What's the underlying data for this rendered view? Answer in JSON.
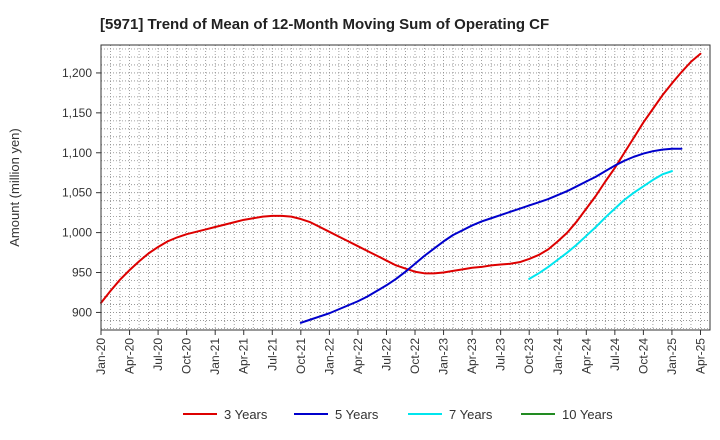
{
  "chart_data": {
    "type": "line",
    "title": "[5971]  Trend of Mean of 12-Month Moving Sum of Operating CF",
    "xlabel": "",
    "ylabel": "Amount (million yen)",
    "ylim": [
      878,
      1235
    ],
    "yticks": [
      900,
      950,
      1000,
      1050,
      1100,
      1150,
      1200
    ],
    "ytick_labels": [
      "900",
      "950",
      "1,000",
      "1,050",
      "1,100",
      "1,150",
      "1,200"
    ],
    "xtick_labels": [
      "Jan-20",
      "Apr-20",
      "Jul-20",
      "Oct-20",
      "Jan-21",
      "Apr-21",
      "Jul-21",
      "Oct-21",
      "Jan-22",
      "Apr-22",
      "Jul-22",
      "Oct-22",
      "Jan-23",
      "Apr-23",
      "Jul-23",
      "Oct-23",
      "Jan-24",
      "Apr-24",
      "Jul-24",
      "Oct-24",
      "Jan-25",
      "Apr-25"
    ],
    "x_start_month": "Jan-20",
    "grid": true,
    "legend_position": "bottom",
    "series": [
      {
        "name": "3 Years",
        "color": "#dd0000",
        "start_index": 0,
        "values": [
          912,
          927,
          941,
          953,
          964,
          974,
          982,
          989,
          994,
          998,
          1001,
          1004,
          1007,
          1010,
          1013,
          1016,
          1018,
          1020,
          1021,
          1021,
          1020,
          1017,
          1013,
          1007,
          1001,
          995,
          989,
          983,
          977,
          971,
          965,
          959,
          955,
          951,
          949,
          949,
          950,
          952,
          954,
          956,
          957,
          959,
          960,
          961,
          963,
          967,
          972,
          979,
          989,
          1000,
          1014,
          1030,
          1046,
          1064,
          1081,
          1100,
          1119,
          1138,
          1155,
          1172,
          1187,
          1201,
          1214,
          1224
        ]
      },
      {
        "name": "5 Years",
        "color": "#0000cc",
        "start_index": 21,
        "values": [
          887,
          891,
          895,
          899,
          904,
          909,
          914,
          920,
          927,
          934,
          942,
          951,
          961,
          971,
          980,
          989,
          997,
          1003,
          1009,
          1014,
          1018,
          1022,
          1026,
          1030,
          1034,
          1038,
          1042,
          1047,
          1052,
          1058,
          1064,
          1070,
          1077,
          1084,
          1090,
          1095,
          1099,
          1102,
          1104,
          1105,
          1105
        ]
      },
      {
        "name": "7 Years",
        "color": "#00e5ee",
        "start_index": 45,
        "values": [
          942,
          949,
          957,
          966,
          975,
          985,
          996,
          1007,
          1019,
          1030,
          1041,
          1050,
          1058,
          1066,
          1073,
          1077
        ]
      },
      {
        "name": "10 Years",
        "color": "#228b22",
        "start_index": 0,
        "values": []
      }
    ]
  }
}
